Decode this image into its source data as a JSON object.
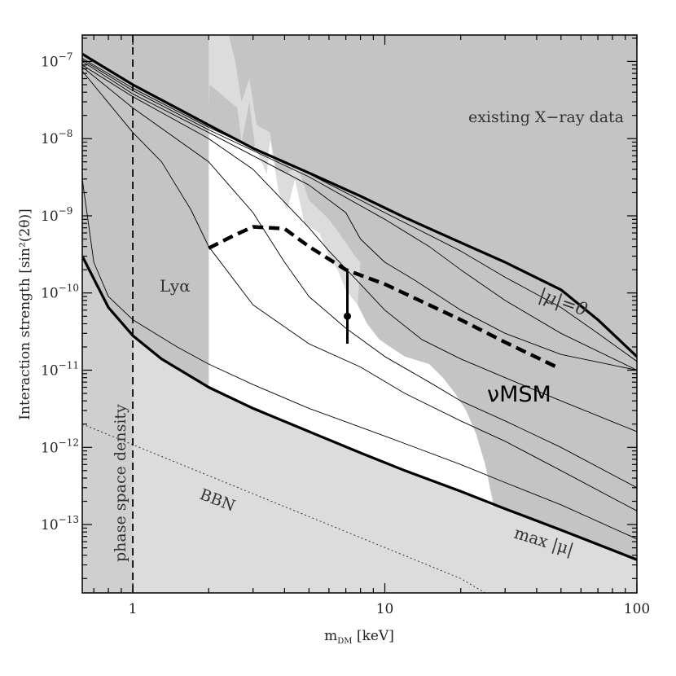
{
  "chart_data": {
    "type": "line",
    "title": "",
    "xlabel": "m_DM [keV]",
    "xlabel_main": "m",
    "xlabel_sub": "DM",
    "xlabel_unit": " [keV]",
    "ylabel": "Interaction strength [sin²(2θ)]",
    "x_scale": "log",
    "y_scale": "log",
    "xlim": [
      0.63,
      100
    ],
    "ylim": [
      1.3e-14,
      2.2e-07
    ],
    "x_ticks": [
      {
        "value": 1,
        "label": "1"
      },
      {
        "value": 10,
        "label": "10"
      },
      {
        "value": 100,
        "label": "100"
      }
    ],
    "y_ticks": [
      {
        "exp": -7,
        "base": "10",
        "sup": "−7"
      },
      {
        "exp": -8,
        "base": "10",
        "sup": "−8"
      },
      {
        "exp": -9,
        "base": "10",
        "sup": "−9"
      },
      {
        "exp": -10,
        "base": "10",
        "sup": "−10"
      },
      {
        "exp": -11,
        "base": "10",
        "sup": "−11"
      },
      {
        "exp": -12,
        "base": "10",
        "sup": "−12"
      },
      {
        "exp": -13,
        "base": "10",
        "sup": "−13"
      }
    ],
    "colors": {
      "dark_region": "#c4c4c4",
      "light_region": "#dcdcdc",
      "allowed_region": "#ffffff",
      "lines": "#000000"
    },
    "regions": {
      "allowed_top_lower_mu0": [
        [
          2.0,
          1.5e-08
        ],
        [
          3.0,
          7.5e-09
        ],
        [
          5.0,
          3.6e-09
        ],
        [
          8.0,
          1.8e-09
        ],
        [
          12.0,
          9.5e-10
        ],
        [
          20.0,
          4.5e-10
        ],
        [
          30.0,
          2.5e-10
        ]
      ],
      "max_mu": [
        [
          0.63,
          3e-10
        ],
        [
          0.8,
          6.5e-11
        ],
        [
          1.0,
          2.8e-11
        ],
        [
          1.3,
          1.4e-11
        ],
        [
          2.0,
          6e-12
        ],
        [
          3.0,
          3.2e-12
        ],
        [
          5.0,
          1.6e-12
        ],
        [
          8.0,
          8.5e-13
        ],
        [
          12.0,
          5e-13
        ],
        [
          20.0,
          2.7e-13
        ],
        [
          30.0,
          1.6e-13
        ],
        [
          50.0,
          8.5e-14
        ],
        [
          100.0,
          3.5e-14
        ]
      ],
      "xray_boundary": [
        [
          2.0,
          2.5e-08
        ],
        [
          2.02,
          5e-08
        ],
        [
          2.6,
          2.5e-08
        ],
        [
          2.7,
          9e-09
        ],
        [
          2.9,
          3e-08
        ],
        [
          3.05,
          8e-09
        ],
        [
          3.4,
          3.5e-09
        ],
        [
          3.5,
          1e-08
        ],
        [
          3.8,
          2e-09
        ],
        [
          4.1,
          1.2e-09
        ],
        [
          4.4,
          3e-09
        ],
        [
          4.8,
          8e-10
        ],
        [
          5.5,
          6e-10
        ],
        [
          6.0,
          3e-10
        ],
        [
          6.5,
          2e-10
        ],
        [
          7.0,
          1.1e-10
        ],
        [
          7.8,
          7e-11
        ],
        [
          8.5,
          4e-11
        ],
        [
          9.5,
          2.5e-11
        ],
        [
          10.5,
          2e-11
        ],
        [
          12.0,
          1.5e-11
        ],
        [
          15.0,
          1.2e-11
        ],
        [
          17.0,
          8e-12
        ],
        [
          19.0,
          5e-12
        ],
        [
          21.0,
          3e-12
        ],
        [
          23.0,
          1.5e-12
        ],
        [
          25.0,
          6e-13
        ],
        [
          27.0,
          1.8e-13
        ]
      ],
      "lya_x": 2.0,
      "phase_space_upper": [
        [
          0.63,
          4e-12
        ],
        [
          1.0,
          1.6e-12
        ],
        [
          2.0,
          7e-13
        ],
        [
          5.0,
          2.5e-13
        ],
        [
          10.0,
          1.2e-13
        ],
        [
          20.0,
          6e-14
        ],
        [
          50.0,
          2.5e-14
        ],
        [
          100.0,
          1.3e-14
        ]
      ]
    },
    "series": [
      {
        "style": "thick",
        "points": [
          [
            0.63,
            1.25e-07
          ],
          [
            1.0,
            5e-08
          ],
          [
            2.0,
            1.5e-08
          ],
          [
            3.0,
            7.5e-09
          ],
          [
            5.0,
            3.6e-09
          ],
          [
            8.0,
            1.8e-09
          ],
          [
            12.0,
            9.5e-10
          ],
          [
            20.0,
            4.5e-10
          ],
          [
            30.0,
            2.5e-10
          ],
          [
            50.0,
            1.1e-10
          ],
          [
            70.0,
            4.5e-11
          ],
          [
            100.0,
            1.5e-11
          ]
        ]
      },
      {
        "style": "thin",
        "points": [
          [
            0.63,
            1.1e-07
          ],
          [
            1.0,
            4.5e-08
          ],
          [
            2.0,
            1.4e-08
          ],
          [
            5.0,
            3.5e-09
          ],
          [
            10.0,
            1.1e-09
          ],
          [
            20.0,
            3.5e-10
          ],
          [
            30.0,
            1.6e-10
          ],
          [
            50.0,
            6.5e-11
          ],
          [
            70.0,
            3e-11
          ],
          [
            100.0,
            1.3e-11
          ]
        ]
      },
      {
        "style": "thin",
        "points": [
          [
            0.63,
            1.05e-07
          ],
          [
            1.0,
            4.2e-08
          ],
          [
            2.0,
            1.3e-08
          ],
          [
            5.0,
            3.2e-09
          ],
          [
            10.0,
            9e-10
          ],
          [
            15.0,
            4e-10
          ],
          [
            20.0,
            2e-10
          ],
          [
            30.0,
            8e-11
          ],
          [
            50.0,
            3e-11
          ],
          [
            100.0,
            1e-11
          ]
        ]
      },
      {
        "style": "thin",
        "points": [
          [
            0.63,
            1e-07
          ],
          [
            1.0,
            3.8e-08
          ],
          [
            2.0,
            1.2e-08
          ],
          [
            3.0,
            6e-09
          ],
          [
            5.0,
            2.5e-09
          ],
          [
            7.0,
            1.1e-09
          ],
          [
            8.0,
            5e-10
          ],
          [
            10.0,
            2.5e-10
          ],
          [
            13.0,
            1.5e-10
          ],
          [
            20.0,
            6e-11
          ],
          [
            30.0,
            3e-11
          ],
          [
            50.0,
            1.6e-11
          ],
          [
            100.0,
            1e-11
          ]
        ]
      },
      {
        "style": "thin",
        "points": [
          [
            0.63,
            9e-08
          ],
          [
            1.0,
            3.5e-08
          ],
          [
            2.0,
            1e-08
          ],
          [
            3.0,
            4e-09
          ],
          [
            4.0,
            1.5e-09
          ],
          [
            5.0,
            7e-10
          ],
          [
            6.0,
            3.5e-10
          ],
          [
            8.0,
            1.3e-10
          ],
          [
            10.0,
            6e-11
          ],
          [
            14.0,
            2.5e-11
          ],
          [
            20.0,
            1.4e-11
          ],
          [
            30.0,
            8e-12
          ],
          [
            50.0,
            4e-12
          ],
          [
            100.0,
            1.6e-12
          ]
        ]
      },
      {
        "style": "thin",
        "points": [
          [
            0.63,
            8.5e-08
          ],
          [
            1.0,
            2.5e-08
          ],
          [
            2.0,
            5e-09
          ],
          [
            3.0,
            1.1e-09
          ],
          [
            4.0,
            2.5e-10
          ],
          [
            5.0,
            9e-11
          ],
          [
            7.0,
            3.5e-11
          ],
          [
            10.0,
            1.5e-11
          ],
          [
            15.0,
            7e-12
          ],
          [
            20.0,
            4e-12
          ],
          [
            30.0,
            2.2e-12
          ],
          [
            50.0,
            1e-12
          ],
          [
            100.0,
            3e-13
          ]
        ]
      },
      {
        "style": "thin",
        "points": [
          [
            0.63,
            7.5e-08
          ],
          [
            1.0,
            1.2e-08
          ],
          [
            1.3,
            5e-09
          ],
          [
            1.7,
            1.2e-09
          ],
          [
            2.0,
            4e-10
          ],
          [
            3.0,
            7e-11
          ],
          [
            5.0,
            2.2e-11
          ],
          [
            8.0,
            1.1e-11
          ],
          [
            12.0,
            5e-12
          ],
          [
            20.0,
            2.2e-12
          ],
          [
            30.0,
            1.2e-12
          ],
          [
            50.0,
            5e-13
          ],
          [
            100.0,
            1.5e-13
          ]
        ]
      },
      {
        "style": "thin",
        "points": [
          [
            0.63,
            3e-09
          ],
          [
            0.7,
            2.5e-10
          ],
          [
            0.8,
            9e-11
          ],
          [
            1.0,
            4.5e-11
          ],
          [
            1.5,
            2e-11
          ],
          [
            2.0,
            1.2e-11
          ],
          [
            3.0,
            6.5e-12
          ],
          [
            5.0,
            3.2e-12
          ],
          [
            10.0,
            1.4e-12
          ],
          [
            20.0,
            6e-13
          ],
          [
            30.0,
            3.5e-13
          ],
          [
            50.0,
            1.8e-13
          ],
          [
            100.0,
            6.5e-14
          ]
        ]
      },
      {
        "style": "thick",
        "points": [
          [
            0.63,
            3e-10
          ],
          [
            0.8,
            6.5e-11
          ],
          [
            1.0,
            2.8e-11
          ],
          [
            1.3,
            1.4e-11
          ],
          [
            2.0,
            6e-12
          ],
          [
            3.0,
            3.2e-12
          ],
          [
            5.0,
            1.6e-12
          ],
          [
            8.0,
            8.5e-13
          ],
          [
            12.0,
            5e-13
          ],
          [
            20.0,
            2.7e-13
          ],
          [
            30.0,
            1.6e-13
          ],
          [
            50.0,
            8.5e-14
          ],
          [
            100.0,
            3.5e-14
          ]
        ]
      },
      {
        "style": "dashed",
        "points": [
          [
            2.0,
            3.8e-10
          ],
          [
            2.5,
            5.5e-10
          ],
          [
            3.0,
            7.2e-10
          ],
          [
            4.0,
            6.8e-10
          ],
          [
            5.0,
            4e-10
          ],
          [
            7.0,
            2e-10
          ],
          [
            10.0,
            1.3e-10
          ],
          [
            20.0,
            4.5e-11
          ],
          [
            30.0,
            2.3e-11
          ],
          [
            48.0,
            1.1e-11
          ]
        ]
      }
    ],
    "bbn_line": [
      [
        0.63,
        2e-12
      ],
      [
        20.0,
        2e-14
      ],
      [
        25.0,
        1.3e-14
      ]
    ],
    "phase_space_limit_x": 1.0,
    "data_point": {
      "x": 7.1,
      "y": 5e-11,
      "y_low": 2.2e-11,
      "y_high": 1.9e-10
    },
    "annotations": {
      "xray": "existing X−ray data",
      "mu0": "|μ|=0",
      "numsm": "νMSM",
      "lya": "Lyα",
      "phase_space": "phase space density",
      "bbn": "BBN",
      "maxmu": "max |μ|"
    }
  }
}
